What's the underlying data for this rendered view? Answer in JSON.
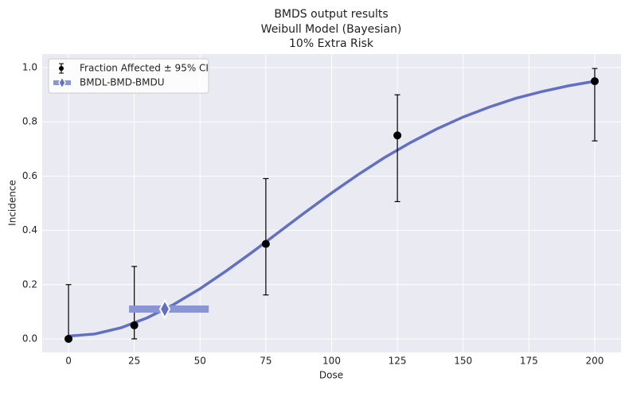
{
  "chart_data": {
    "type": "line",
    "title": [
      "BMDS output results",
      "Weibull Model (Bayesian)",
      "10% Extra Risk"
    ],
    "x_label": "Dose",
    "y_label": "Incidence",
    "xlim": [
      -10,
      210
    ],
    "ylim": [
      -0.05,
      1.05
    ],
    "xticks": [
      0,
      25,
      50,
      75,
      100,
      125,
      150,
      175,
      200
    ],
    "yticks": [
      {
        "value": 0,
        "label": "0.0"
      },
      {
        "value": 0.2,
        "label": "0.2"
      },
      {
        "value": 0.4,
        "label": "0.4"
      },
      {
        "value": 0.6,
        "label": "0.6"
      },
      {
        "value": 0.8,
        "label": "0.8"
      },
      {
        "value": 1,
        "label": "1.0"
      }
    ],
    "grid": true,
    "legend": "upper left",
    "fit": {
      "color": "#6170c1",
      "x": [
        0,
        10,
        20,
        30,
        40,
        50,
        60,
        70,
        80,
        90,
        100,
        110,
        120,
        130,
        140,
        150,
        160,
        170,
        180,
        190,
        200
      ],
      "values": [
        0.01,
        0.018,
        0.041,
        0.078,
        0.127,
        0.185,
        0.251,
        0.321,
        0.394,
        0.467,
        0.538,
        0.605,
        0.668,
        0.724,
        0.774,
        0.818,
        0.855,
        0.887,
        0.912,
        0.933,
        0.95
      ]
    },
    "series": [
      {
        "name": "Fraction Affected ± 95% CI",
        "kind": "errorbar",
        "color": "#000000",
        "x": [
          0,
          25,
          75,
          125,
          200
        ],
        "values": [
          0,
          0.05,
          0.35,
          0.75,
          0.95
        ],
        "lower": [
          0,
          0,
          0.162,
          0.506,
          0.73
        ],
        "upper": [
          0.2,
          0.267,
          0.591,
          0.9,
          0.997
        ]
      },
      {
        "name": "BMDL-BMD-BMDU",
        "kind": "interval",
        "color": "#8b95d3",
        "bmdl": 23,
        "bmd": 36.6,
        "bmdu": 53.3,
        "value": 0.11
      }
    ]
  }
}
